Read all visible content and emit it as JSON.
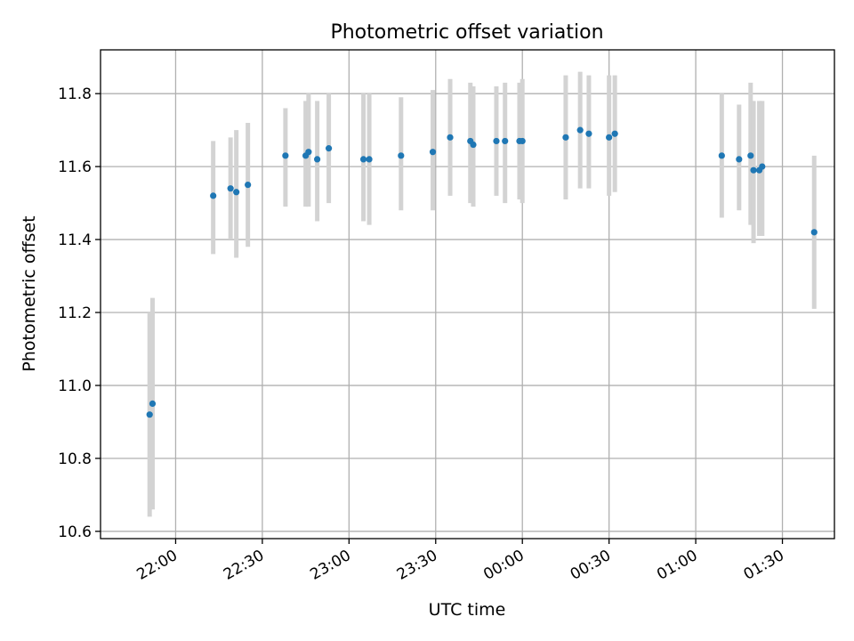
{
  "chart_data": {
    "type": "scatter",
    "title": "Photometric offset variation",
    "xlabel": "UTC time",
    "ylabel": "Photometric offset",
    "grid": true,
    "x_axis": {
      "kind": "time",
      "range": [
        "21:34",
        "01:48"
      ],
      "ticks": [
        {
          "value": "22:00",
          "label": "22:00"
        },
        {
          "value": "22:30",
          "label": "22:30"
        },
        {
          "value": "23:00",
          "label": "23:00"
        },
        {
          "value": "23:30",
          "label": "23:30"
        },
        {
          "value": "00:00",
          "label": "00:00"
        },
        {
          "value": "00:30",
          "label": "00:30"
        },
        {
          "value": "01:00",
          "label": "01:00"
        },
        {
          "value": "01:30",
          "label": "01:30"
        }
      ]
    },
    "y_axis": {
      "range": [
        10.58,
        11.92
      ],
      "ticks": [
        {
          "value": 10.6,
          "label": "10.6"
        },
        {
          "value": 10.8,
          "label": "10.8"
        },
        {
          "value": 11.0,
          "label": "11.0"
        },
        {
          "value": 11.2,
          "label": "11.2"
        },
        {
          "value": 11.4,
          "label": "11.4"
        },
        {
          "value": 11.6,
          "label": "11.6"
        },
        {
          "value": 11.8,
          "label": "11.8"
        }
      ]
    },
    "colors": {
      "marker": "#1f77b4",
      "errorbar": "#d3d3d3",
      "grid": "#b0b0b0"
    },
    "series": [
      {
        "points": [
          {
            "x": "21:51",
            "y": 10.92,
            "low": 10.64,
            "high": 11.2
          },
          {
            "x": "21:52",
            "y": 10.95,
            "low": 10.66,
            "high": 11.24
          },
          {
            "x": "22:13",
            "y": 11.52,
            "low": 11.36,
            "high": 11.67
          },
          {
            "x": "22:19",
            "y": 11.54,
            "low": 11.4,
            "high": 11.68
          },
          {
            "x": "22:21",
            "y": 11.53,
            "low": 11.35,
            "high": 11.7
          },
          {
            "x": "22:25",
            "y": 11.55,
            "low": 11.38,
            "high": 11.72
          },
          {
            "x": "22:38",
            "y": 11.63,
            "low": 11.49,
            "high": 11.76
          },
          {
            "x": "22:45",
            "y": 11.63,
            "low": 11.49,
            "high": 11.78
          },
          {
            "x": "22:46",
            "y": 11.64,
            "low": 11.49,
            "high": 11.8
          },
          {
            "x": "22:49",
            "y": 11.62,
            "low": 11.45,
            "high": 11.78
          },
          {
            "x": "22:53",
            "y": 11.65,
            "low": 11.5,
            "high": 11.8
          },
          {
            "x": "23:05",
            "y": 11.62,
            "low": 11.45,
            "high": 11.8
          },
          {
            "x": "23:07",
            "y": 11.62,
            "low": 11.44,
            "high": 11.8
          },
          {
            "x": "23:18",
            "y": 11.63,
            "low": 11.48,
            "high": 11.79
          },
          {
            "x": "23:29",
            "y": 11.64,
            "low": 11.48,
            "high": 11.81
          },
          {
            "x": "23:35",
            "y": 11.68,
            "low": 11.52,
            "high": 11.84
          },
          {
            "x": "23:42",
            "y": 11.67,
            "low": 11.5,
            "high": 11.83
          },
          {
            "x": "23:43",
            "y": 11.66,
            "low": 11.49,
            "high": 11.82
          },
          {
            "x": "23:51",
            "y": 11.67,
            "low": 11.52,
            "high": 11.82
          },
          {
            "x": "23:54",
            "y": 11.67,
            "low": 11.5,
            "high": 11.83
          },
          {
            "x": "23:59",
            "y": 11.67,
            "low": 11.51,
            "high": 11.83
          },
          {
            "x": "00:00",
            "y": 11.67,
            "low": 11.5,
            "high": 11.84
          },
          {
            "x": "00:15",
            "y": 11.68,
            "low": 11.51,
            "high": 11.85
          },
          {
            "x": "00:20",
            "y": 11.7,
            "low": 11.54,
            "high": 11.86
          },
          {
            "x": "00:23",
            "y": 11.69,
            "low": 11.54,
            "high": 11.85
          },
          {
            "x": "00:30",
            "y": 11.68,
            "low": 11.52,
            "high": 11.85
          },
          {
            "x": "00:32",
            "y": 11.69,
            "low": 11.53,
            "high": 11.85
          },
          {
            "x": "01:09",
            "y": 11.63,
            "low": 11.46,
            "high": 11.8
          },
          {
            "x": "01:15",
            "y": 11.62,
            "low": 11.48,
            "high": 11.77
          },
          {
            "x": "01:19",
            "y": 11.63,
            "low": 11.44,
            "high": 11.83
          },
          {
            "x": "01:20",
            "y": 11.59,
            "low": 11.39,
            "high": 11.78
          },
          {
            "x": "01:22",
            "y": 11.59,
            "low": 11.41,
            "high": 11.78
          },
          {
            "x": "01:23",
            "y": 11.6,
            "low": 11.41,
            "high": 11.78
          },
          {
            "x": "01:41",
            "y": 11.42,
            "low": 11.21,
            "high": 11.63
          }
        ]
      }
    ]
  }
}
